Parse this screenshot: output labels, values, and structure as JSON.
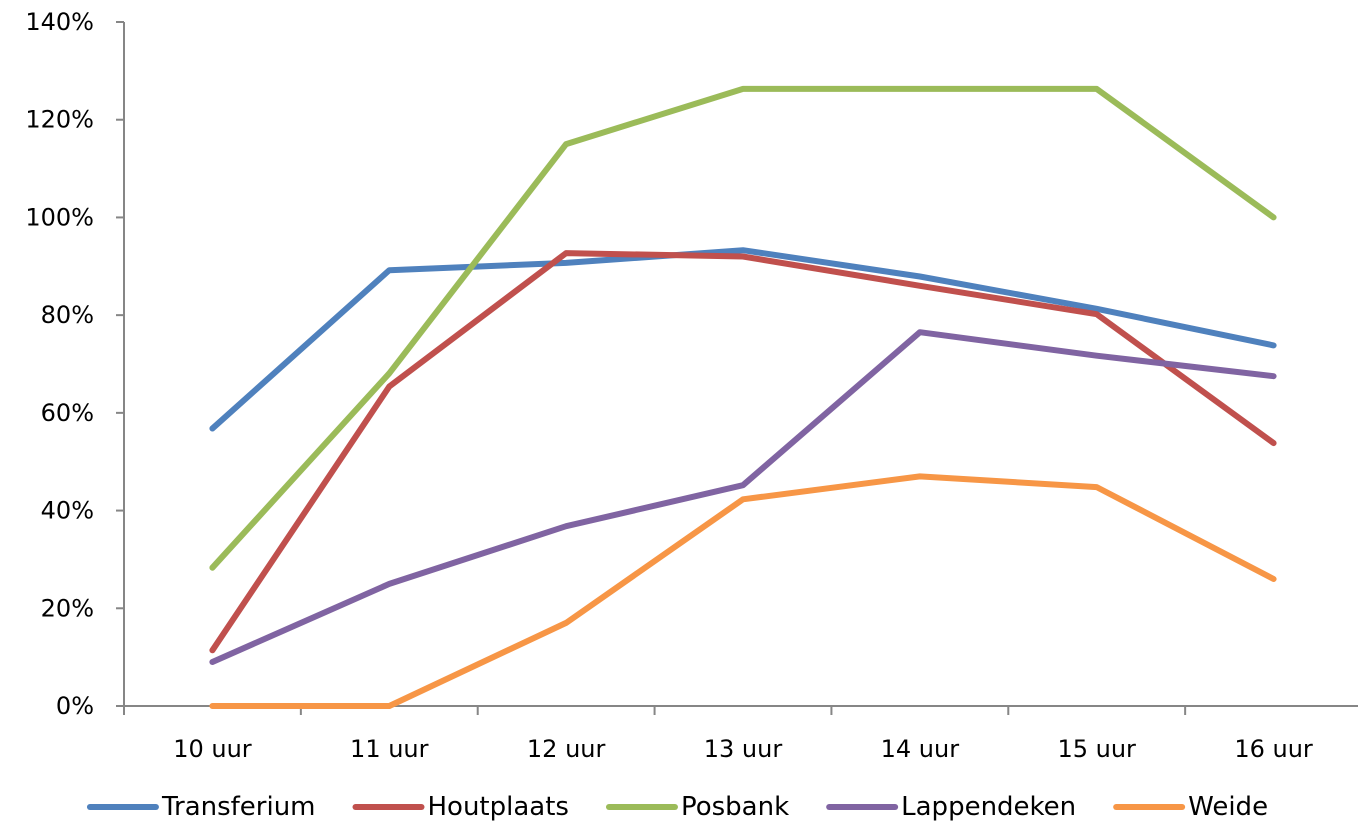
{
  "chart_data": {
    "type": "line",
    "title": "",
    "xlabel": "",
    "ylabel": "",
    "categories": [
      "10 uur",
      "11 uur",
      "12 uur",
      "13 uur",
      "14 uur",
      "15 uur",
      "16 uur"
    ],
    "ylim": [
      0,
      140
    ],
    "y_ticks": [
      "0%",
      "20%",
      "40%",
      "60%",
      "80%",
      "100%",
      "120%",
      "140%"
    ],
    "y_tick_values": [
      0,
      20,
      40,
      60,
      80,
      100,
      120,
      140
    ],
    "y_unit": "%",
    "grid": false,
    "legend_position": "bottom",
    "series": [
      {
        "name": "Transferium",
        "color": "#4F81BD",
        "values": [
          56.8,
          89.2,
          90.7,
          93.3,
          87.9,
          81.3,
          73.8
        ]
      },
      {
        "name": "Houtplaats",
        "color": "#C0504D",
        "values": [
          11.4,
          65.4,
          92.7,
          92.0,
          86.0,
          80.2,
          53.8
        ]
      },
      {
        "name": "Posbank",
        "color": "#9BBB59",
        "values": [
          28.3,
          68.1,
          115.0,
          126.3,
          126.3,
          126.3,
          100.0
        ]
      },
      {
        "name": "Lappendeken",
        "color": "#8064A2",
        "values": [
          9.0,
          25.0,
          36.8,
          45.2,
          76.5,
          71.7,
          67.5
        ]
      },
      {
        "name": "Weide",
        "color": "#F79646",
        "values": [
          0.0,
          0.0,
          17.0,
          42.3,
          47.0,
          44.8,
          26.0
        ]
      }
    ]
  }
}
